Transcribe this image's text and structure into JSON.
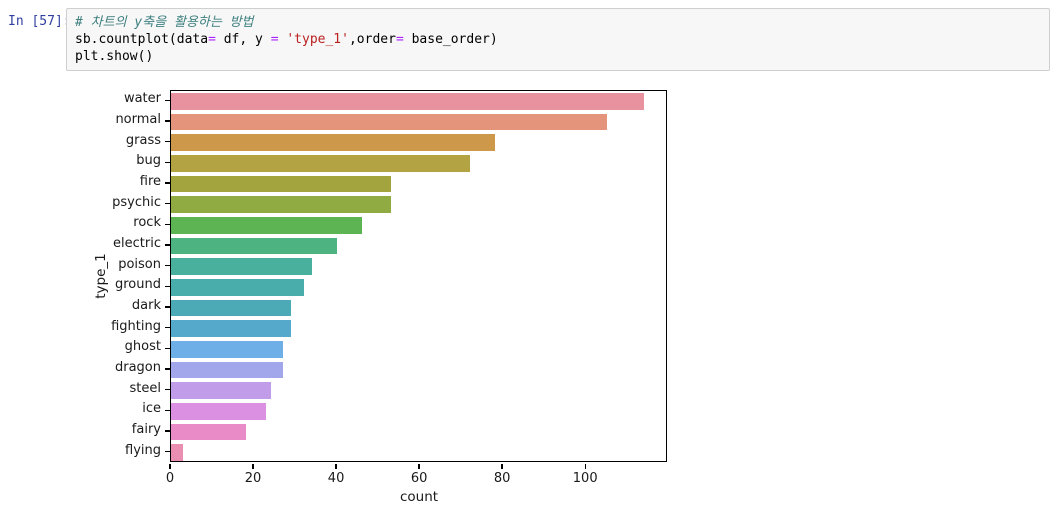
{
  "notebook_cell": {
    "prompt": "In [57]:",
    "code_lines": [
      [
        {
          "t": "# 차트의 y축을 활용하는 방법",
          "c": "comment"
        }
      ],
      [
        {
          "t": "sb.countplot(data",
          "c": "plain"
        },
        {
          "t": "=",
          "c": "op"
        },
        {
          "t": " df, y ",
          "c": "plain"
        },
        {
          "t": "=",
          "c": "op"
        },
        {
          "t": " ",
          "c": "plain"
        },
        {
          "t": "'type_1'",
          "c": "string"
        },
        {
          "t": ",order",
          "c": "plain"
        },
        {
          "t": "=",
          "c": "op"
        },
        {
          "t": " base_order)",
          "c": "plain"
        }
      ],
      [
        {
          "t": "plt.show()",
          "c": "plain"
        }
      ]
    ]
  },
  "chart_data": {
    "type": "bar",
    "orientation": "horizontal",
    "title": "",
    "xlabel": "count",
    "ylabel": "type_1",
    "categories": [
      "water",
      "normal",
      "grass",
      "bug",
      "fire",
      "psychic",
      "rock",
      "electric",
      "poison",
      "ground",
      "dark",
      "fighting",
      "ghost",
      "dragon",
      "steel",
      "ice",
      "fairy",
      "flying"
    ],
    "values": [
      114,
      105,
      78,
      72,
      53,
      53,
      46,
      40,
      34,
      32,
      29,
      29,
      27,
      27,
      24,
      23,
      18,
      3
    ],
    "bar_colors": [
      "#e8919f",
      "#e3947a",
      "#ce984a",
      "#b4a343",
      "#a3a43e",
      "#8fab41",
      "#5db453",
      "#4db380",
      "#49b09e",
      "#49adab",
      "#4caab7",
      "#55aacb",
      "#6fafe8",
      "#a2a6ea",
      "#c19ce9",
      "#dc90e2",
      "#e98bc6",
      "#ea8fb1"
    ],
    "x_ticks": [
      0,
      20,
      40,
      60,
      80,
      100
    ],
    "xlim": [
      0,
      119.7
    ],
    "grid": false,
    "legend": null
  },
  "colors": {
    "prompt_text": "#303f9f",
    "cell_background": "#f7f7f7",
    "cell_border": "#cfcfcf",
    "comment": "#408080",
    "operator": "#aa22ff",
    "string": "#ba2121",
    "spine": "#000000"
  }
}
